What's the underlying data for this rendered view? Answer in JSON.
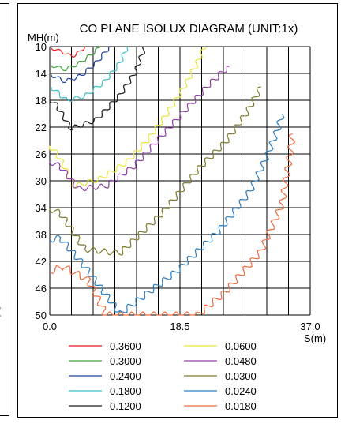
{
  "side_fragments": [
    "°",
    "°"
  ],
  "chart_data": {
    "type": "line",
    "title": "CO PLANE ISOLUX DIAGRAM (UNIT:1x)",
    "ylabel": "MH(m)",
    "xlabel": "S(m)",
    "xlim": [
      0,
      37
    ],
    "ylim": [
      10,
      50
    ],
    "y_reversed": true,
    "x_ticks": [
      "0.0",
      "18.5",
      "37.0"
    ],
    "y_ticks": [
      "10",
      "14",
      "18",
      "22",
      "26",
      "30",
      "34",
      "38",
      "42",
      "46",
      "50"
    ],
    "grid": true,
    "legend_position": "bottom",
    "series": [
      {
        "name": "0.3600",
        "color": "#e8151b",
        "points": [
          [
            0.2,
            10.2
          ],
          [
            1.8,
            10.8
          ],
          [
            3.2,
            11.5
          ],
          [
            4.2,
            10.8
          ],
          [
            5.0,
            10.0
          ]
        ]
      },
      {
        "name": "0.3000",
        "color": "#3aa537",
        "points": [
          [
            0.2,
            12.8
          ],
          [
            2.2,
            13.4
          ],
          [
            4.0,
            12.6
          ],
          [
            5.8,
            11.3
          ],
          [
            7.2,
            10.0
          ]
        ]
      },
      {
        "name": "0.2400",
        "color": "#1d3f9a",
        "points": [
          [
            0.2,
            14.2
          ],
          [
            2.2,
            15.2
          ],
          [
            4.5,
            14.3
          ],
          [
            6.8,
            12.2
          ],
          [
            8.5,
            10.0
          ]
        ]
      },
      {
        "name": "0.1800",
        "color": "#3cc1c8",
        "points": [
          [
            0.2,
            16.0
          ],
          [
            2.4,
            18.0
          ],
          [
            5.0,
            17.4
          ],
          [
            7.8,
            15.2
          ],
          [
            10.0,
            12.4
          ],
          [
            11.0,
            10.0
          ]
        ]
      },
      {
        "name": "0.1200",
        "color": "#1a1a1a",
        "points": [
          [
            0.0,
            17.8
          ],
          [
            1.0,
            18.8
          ],
          [
            3.0,
            22.2
          ],
          [
            6.5,
            21.0
          ],
          [
            10.0,
            17.2
          ],
          [
            12.2,
            13.8
          ],
          [
            13.5,
            10.0
          ]
        ]
      },
      {
        "name": "0.0600",
        "color": "#e8e63a",
        "points": [
          [
            0.0,
            24.8
          ],
          [
            1.2,
            26.2
          ],
          [
            3.5,
            30.8
          ],
          [
            7.0,
            29.8
          ],
          [
            11.0,
            27.2
          ],
          [
            14.0,
            23.8
          ],
          [
            16.8,
            19.8
          ],
          [
            19.2,
            15.8
          ],
          [
            20.8,
            12.8
          ],
          [
            22.0,
            10.0
          ]
        ]
      },
      {
        "name": "0.0480",
        "color": "#8f3fa6",
        "points": [
          [
            0.0,
            27.2
          ],
          [
            1.5,
            27.8
          ],
          [
            4.0,
            31.2
          ],
          [
            8.0,
            30.8
          ],
          [
            12.0,
            27.8
          ],
          [
            16.0,
            23.2
          ],
          [
            19.5,
            19.2
          ],
          [
            22.5,
            15.8
          ],
          [
            24.5,
            13.8
          ],
          [
            25.5,
            13.0
          ]
        ]
      },
      {
        "name": "0.0300",
        "color": "#7f7a2b",
        "points": [
          [
            0.0,
            34.2
          ],
          [
            1.5,
            34.8
          ],
          [
            5.0,
            40.2
          ],
          [
            10.0,
            40.8
          ],
          [
            16.0,
            34.8
          ],
          [
            21.5,
            27.8
          ],
          [
            25.0,
            24.2
          ],
          [
            28.0,
            19.8
          ],
          [
            29.5,
            17.0
          ],
          [
            30.0,
            16.0
          ]
        ]
      },
      {
        "name": "0.0240",
        "color": "#2b7dc0",
        "points": [
          [
            0.0,
            38.8
          ],
          [
            1.5,
            38.5
          ],
          [
            5.0,
            42.8
          ],
          [
            10.0,
            49.8
          ],
          [
            18.0,
            43.5
          ],
          [
            24.0,
            37.5
          ],
          [
            28.5,
            31.5
          ],
          [
            31.0,
            26.0
          ],
          [
            32.5,
            22.0
          ],
          [
            33.0,
            20.0
          ]
        ]
      },
      {
        "name": "0.0180",
        "color": "#f06a3c",
        "points": [
          [
            0.0,
            43.5
          ],
          [
            2.0,
            42.8
          ],
          [
            5.5,
            44.8
          ],
          [
            8.0,
            50.0
          ],
          [
            21.0,
            50.0
          ],
          [
            25.0,
            46.5
          ],
          [
            30.0,
            40.5
          ],
          [
            33.0,
            33.5
          ],
          [
            34.0,
            27.0
          ],
          [
            34.5,
            23.0
          ]
        ]
      }
    ]
  }
}
